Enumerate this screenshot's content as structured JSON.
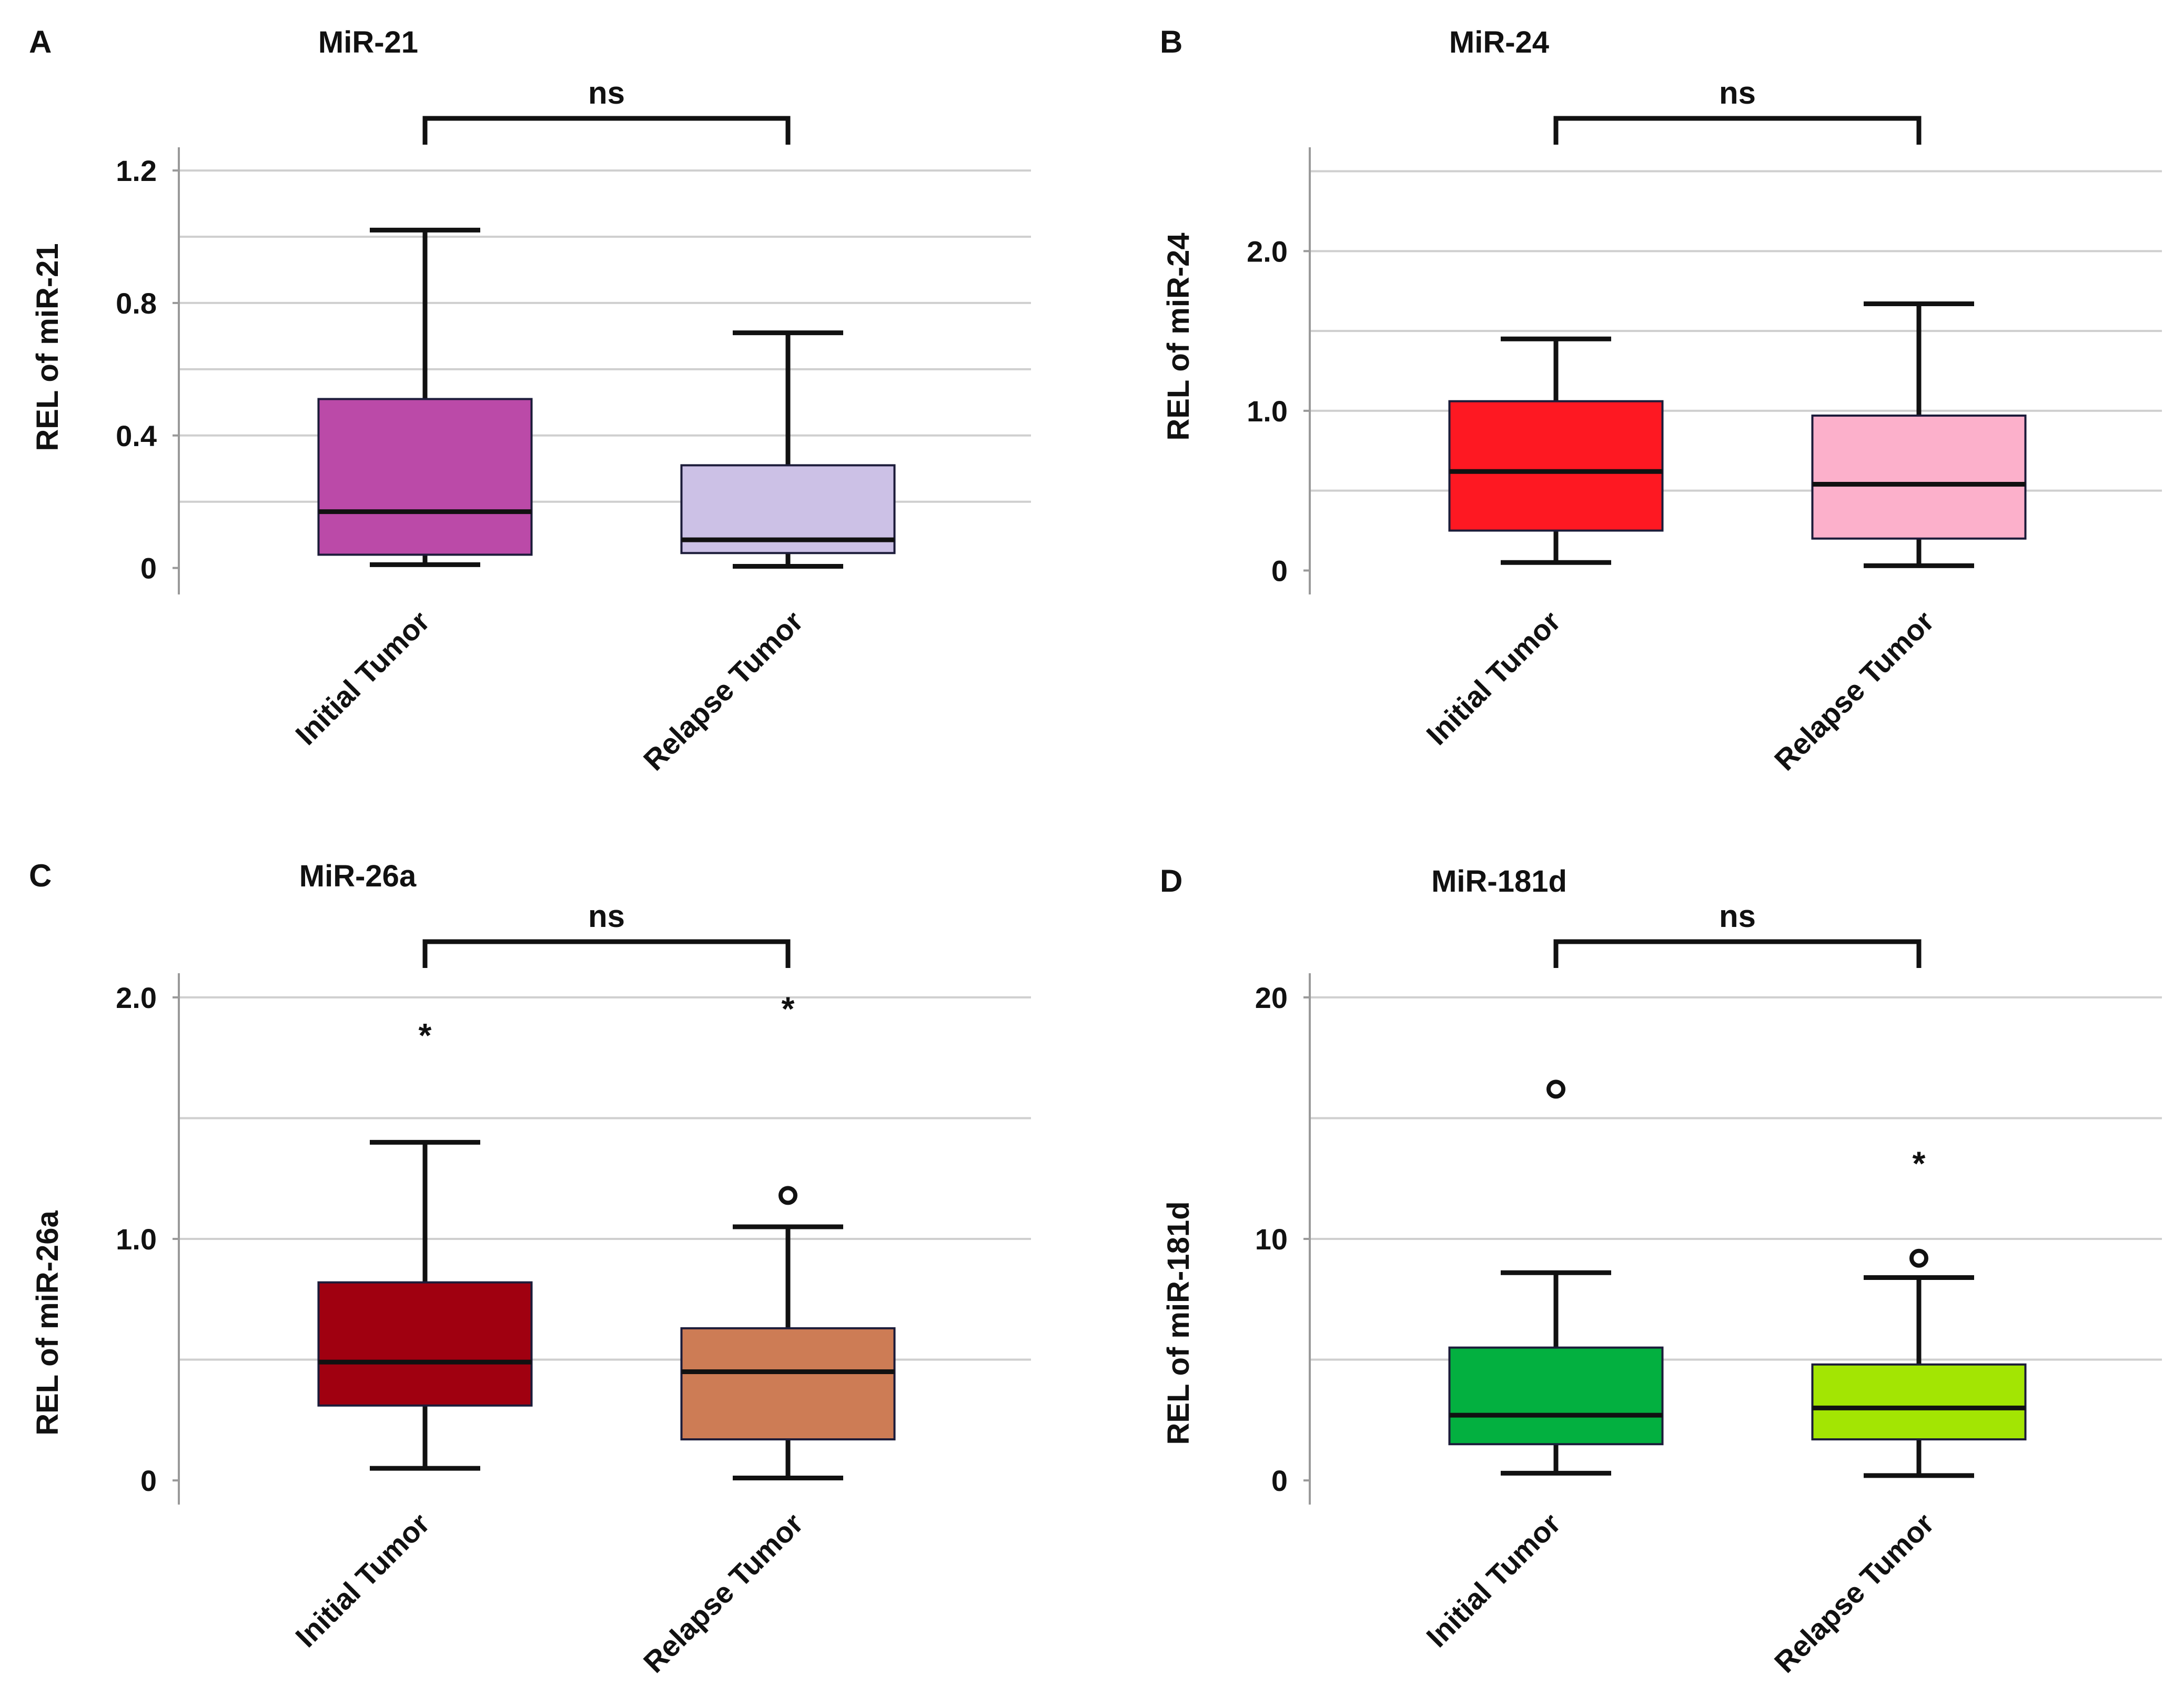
{
  "figure": {
    "description_tag": "Four-panel box plot figure comparing relative expression levels",
    "panels": [
      "A",
      "B",
      "C",
      "D"
    ]
  },
  "chart_data": [
    {
      "type": "boxplot",
      "letter": "A",
      "title": "MiR-21",
      "ylabel": "REL of miR-21",
      "xlabel": "",
      "categories": [
        "Initial Tumor",
        "Relapse Tumor"
      ],
      "ylim": [
        -0.08,
        1.27
      ],
      "yticks": [
        0,
        0.4,
        0.8,
        1.2
      ],
      "ytick_labels": [
        "0",
        "0.4",
        "0.8",
        "1.2"
      ],
      "gridlines": [
        0.2,
        0.4,
        0.6,
        0.8,
        1.0,
        1.2
      ],
      "significance": "ns",
      "boxes": [
        {
          "name": "Initial Tumor",
          "whisker_low": 0.01,
          "q1": 0.04,
          "median": 0.17,
          "q3": 0.51,
          "whisker_high": 1.02,
          "color": "#bb4aa8",
          "outliers": [],
          "extremes": []
        },
        {
          "name": "Relapse Tumor",
          "whisker_low": 0.005,
          "q1": 0.045,
          "median": 0.085,
          "q3": 0.31,
          "whisker_high": 0.71,
          "color": "#ccc1e6",
          "outliers": [],
          "extremes": []
        }
      ]
    },
    {
      "type": "boxplot",
      "letter": "B",
      "title": "MiR-24",
      "ylabel": "REL of miR-24",
      "xlabel": "",
      "categories": [
        "Initial Tumor",
        "Relapse Tumor"
      ],
      "ylim": [
        -0.15,
        2.65
      ],
      "yticks": [
        0,
        1.0,
        2.0
      ],
      "ytick_labels": [
        "0",
        "1.0",
        "2.0"
      ],
      "gridlines": [
        0.5,
        1.0,
        1.5,
        2.0,
        2.5
      ],
      "significance": "ns",
      "boxes": [
        {
          "name": "Initial Tumor",
          "whisker_low": 0.05,
          "q1": 0.25,
          "median": 0.62,
          "q3": 1.06,
          "whisker_high": 1.45,
          "color": "#fe1822",
          "outliers": [],
          "extremes": []
        },
        {
          "name": "Relapse Tumor",
          "whisker_low": 0.03,
          "q1": 0.2,
          "median": 0.54,
          "q3": 0.97,
          "whisker_high": 1.67,
          "color": "#fcb0cb",
          "outliers": [],
          "extremes": []
        }
      ]
    },
    {
      "type": "boxplot",
      "letter": "C",
      "title": "MiR-26a",
      "ylabel": "REL of miR-26a",
      "xlabel": "",
      "categories": [
        "Initial Tumor",
        "Relapse Tumor"
      ],
      "ylim": [
        -0.1,
        2.1
      ],
      "yticks": [
        0,
        1.0,
        2.0
      ],
      "ytick_labels": [
        "0",
        "1.0",
        "2.0"
      ],
      "gridlines": [
        0.5,
        1.0,
        1.5,
        2.0
      ],
      "significance": "ns",
      "boxes": [
        {
          "name": "Initial Tumor",
          "whisker_low": 0.05,
          "q1": 0.31,
          "median": 0.49,
          "q3": 0.82,
          "whisker_high": 1.4,
          "color": "#a00010",
          "outliers": [],
          "extremes": [
            1.86
          ]
        },
        {
          "name": "Relapse Tumor",
          "whisker_low": 0.01,
          "q1": 0.17,
          "median": 0.45,
          "q3": 0.63,
          "whisker_high": 1.05,
          "color": "#cd7c55",
          "outliers": [
            1.18
          ],
          "extremes": [
            1.97
          ]
        }
      ]
    },
    {
      "type": "boxplot",
      "letter": "D",
      "title": "MiR-181d",
      "ylabel": "REL of miR-181d",
      "xlabel": "",
      "categories": [
        "Initial Tumor",
        "Relapse Tumor"
      ],
      "ylim": [
        -1.0,
        21.0
      ],
      "yticks": [
        0,
        10,
        20
      ],
      "ytick_labels": [
        "0",
        "10",
        "20"
      ],
      "gridlines": [
        5,
        10,
        15,
        20
      ],
      "significance": "ns",
      "boxes": [
        {
          "name": "Initial Tumor",
          "whisker_low": 0.3,
          "q1": 1.5,
          "median": 2.7,
          "q3": 5.5,
          "whisker_high": 8.6,
          "color": "#03b040",
          "outliers": [
            16.2
          ],
          "extremes": []
        },
        {
          "name": "Relapse Tumor",
          "whisker_low": 0.2,
          "q1": 1.7,
          "median": 3.0,
          "q3": 4.8,
          "whisker_high": 8.4,
          "color": "#a3e503",
          "outliers": [
            9.2
          ],
          "extremes": [
            13.3
          ]
        }
      ]
    }
  ]
}
